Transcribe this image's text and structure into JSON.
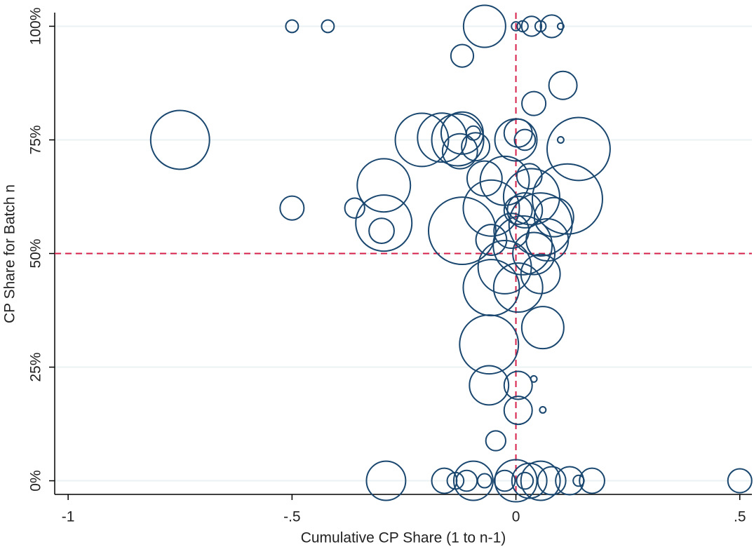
{
  "chart_data": {
    "type": "scatter",
    "x_label": "Cumulative CP Share (1 to n-1)",
    "y_label": "CP Share for Batch n",
    "xlim": [
      -1.03,
      0.527
    ],
    "ylim": [
      -3,
      103
    ],
    "xticks": [
      -1,
      {
        "value": -0.5,
        "label": "-.5"
      },
      0,
      {
        "value": 0.5,
        "label": ".5"
      }
    ],
    "yticks": [
      {
        "value": 0,
        "label": "0%"
      },
      {
        "value": 25,
        "label": "25%"
      },
      {
        "value": 50,
        "label": "50%"
      },
      {
        "value": 75,
        "label": "75%"
      },
      {
        "value": 100,
        "label": "100%"
      }
    ],
    "grid": true,
    "reference_lines": {
      "x": 0,
      "y": 50,
      "color": "#d6204a"
    },
    "series": [
      {
        "color": "#1a476f",
        "x": [
          -0.5,
          -0.42,
          -0.07,
          0,
          0.015,
          0.035,
          0.055,
          0.08,
          0.1,
          -0.12,
          0.105,
          0.04,
          -0.75,
          -0.21,
          -0.165,
          -0.13,
          -0.12,
          -0.125,
          -0.095,
          0,
          0.005,
          0.02,
          0.1,
          0.14,
          -0.09,
          -0.295,
          -0.3,
          -0.295,
          -0.36,
          -0.5,
          -0.12,
          0.115,
          -0.055,
          -0.025,
          0.035,
          0.055,
          0.015,
          -0.025,
          -0.055,
          0.005,
          0.04,
          0.07,
          -0.01,
          0.02,
          0.085,
          -0.055,
          0.055,
          0.005,
          0.03,
          -0.07,
          -0.06,
          0.06,
          -0.06,
          0.005,
          0.04,
          0.005,
          0.06,
          -0.045,
          -0.29,
          -0.16,
          -0.135,
          -0.11,
          -0.095,
          -0.07,
          -0.025,
          0,
          0.03,
          0.055,
          0.08,
          0.12,
          0.14,
          0.17,
          0.5,
          0.02
        ],
        "values": [
          100,
          100,
          100,
          100,
          100,
          100,
          100,
          100,
          100,
          93.5,
          87,
          83,
          75,
          75,
          75.5,
          75,
          76.5,
          72.5,
          76.5,
          75,
          76.5,
          75,
          75,
          73,
          73.5,
          65,
          55,
          56.7,
          60,
          60,
          55,
          62,
          60,
          66,
          62.5,
          56.4,
          51.8,
          47,
          42.5,
          42.5,
          50,
          53,
          55,
          59.5,
          58,
          53,
          45.5,
          59.5,
          67,
          66.5,
          30,
          33.7,
          21,
          21,
          22.4,
          15.5,
          15.6,
          8.8,
          0,
          0,
          0,
          0,
          0,
          0,
          0,
          0,
          0,
          0,
          0,
          0,
          0,
          0,
          0,
          0
        ],
        "sizes": [
          8,
          8,
          90,
          4,
          6,
          20,
          6,
          26,
          2,
          26,
          40,
          29,
          176,
          144,
          122,
          137,
          90,
          62,
          10,
          90,
          40,
          22,
          2,
          202,
          40,
          144,
          32,
          160,
          20,
          29,
          230,
          250,
          160,
          122,
          160,
          202,
          176,
          144,
          160,
          122,
          90,
          90,
          62,
          62,
          78,
          48,
          78,
          40,
          32,
          62,
          176,
          90,
          78,
          40,
          2,
          40,
          2,
          20,
          78,
          32,
          14,
          22,
          78,
          10,
          22,
          90,
          62,
          78,
          40,
          40,
          6,
          32,
          29,
          14
        ]
      }
    ]
  }
}
